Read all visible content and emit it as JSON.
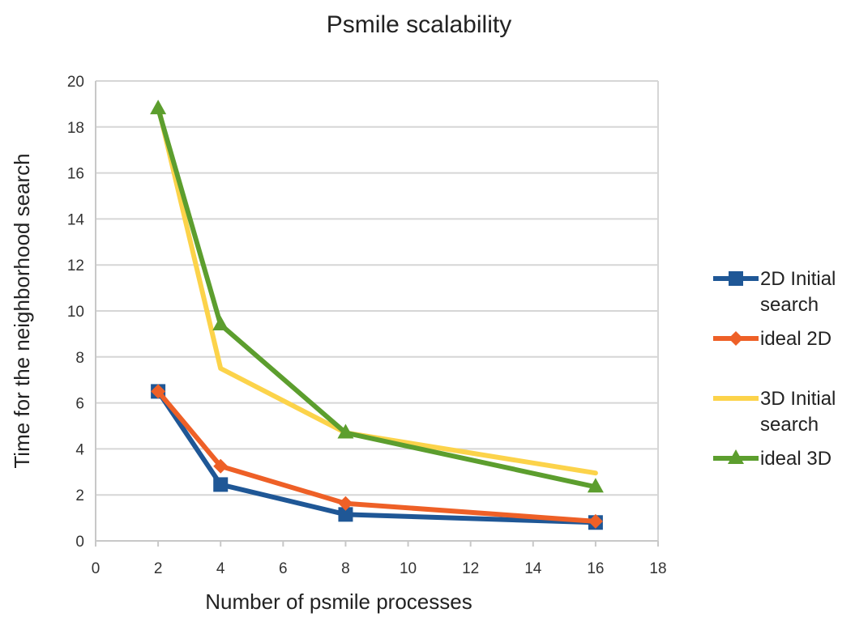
{
  "chart_data": {
    "type": "line",
    "title": "Psmile scalability",
    "xlabel": "Number of psmile processes",
    "ylabel": "Time for the neighborhood search",
    "xlim": [
      0,
      18
    ],
    "ylim": [
      0,
      20
    ],
    "xticks": [
      "0",
      "2",
      "4",
      "6",
      "8",
      "10",
      "12",
      "14",
      "16",
      "18"
    ],
    "yticks": [
      "0",
      "2",
      "4",
      "6",
      "8",
      "10",
      "12",
      "14",
      "16",
      "18",
      "20"
    ],
    "grid": true,
    "legend_position": "right",
    "series": [
      {
        "name": "2D Initial search",
        "legend_lines": [
          "2D Initial",
          "search"
        ],
        "color": "#1f5796",
        "marker": "square",
        "x": [
          2,
          4,
          8,
          16
        ],
        "y": [
          6.5,
          2.45,
          1.15,
          0.8
        ]
      },
      {
        "name": "ideal 2D",
        "legend_lines": [
          "ideal 2D"
        ],
        "color": "#ee6027",
        "marker": "diamond",
        "x": [
          2,
          4,
          8,
          16
        ],
        "y": [
          6.5,
          3.25,
          1.63,
          0.85
        ]
      },
      {
        "name": "3D Initial search",
        "legend_lines": [
          "3D Initial",
          "search"
        ],
        "color": "#fcd34a",
        "marker": "none",
        "x": [
          2,
          4,
          8,
          16
        ],
        "y": [
          18.9,
          7.5,
          4.7,
          2.95
        ]
      },
      {
        "name": "ideal 3D",
        "legend_lines": [
          "ideal 3D"
        ],
        "color": "#5c9e2e",
        "marker": "triangle",
        "x": [
          2,
          4,
          8,
          16
        ],
        "y": [
          18.8,
          9.4,
          4.7,
          2.35
        ]
      }
    ]
  }
}
